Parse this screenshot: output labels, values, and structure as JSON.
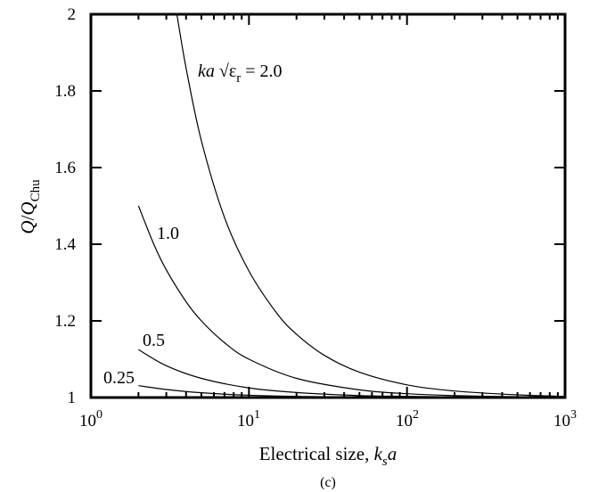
{
  "chart_data": {
    "type": "line",
    "x_scale": "log",
    "xlim": [
      1,
      1000
    ],
    "ylim": [
      1,
      2
    ],
    "grid": false,
    "xlabel": {
      "main": "Electrical size, ",
      "k": "k",
      "s": "s",
      "a": "a"
    },
    "ylabel": {
      "Q1": "Q",
      "slash": "/",
      "Q2": "Q",
      "sub": "Chu"
    },
    "x_tick_labels": [
      {
        "base": "10",
        "exp": "0"
      },
      {
        "base": "10",
        "exp": "1"
      },
      {
        "base": "10",
        "exp": "2"
      },
      {
        "base": "10",
        "exp": "3"
      }
    ],
    "y_tick_labels": [
      "1",
      "1.2",
      "1.4",
      "1.6",
      "1.8",
      "2"
    ],
    "y_ticks": [
      1,
      1.2,
      1.4,
      1.6,
      1.8,
      2
    ],
    "caption": "(c)",
    "series_label_prefix": {
      "ka": "ka",
      "sqrt": "√",
      "eps": "ε",
      "r": "r",
      "eq": " = 2.0"
    },
    "series": [
      {
        "name": "2.0",
        "x": [
          3.5,
          4,
          5,
          7,
          10,
          15,
          20,
          30,
          50,
          100,
          200,
          500,
          1000
        ],
        "y": [
          2.0,
          1.86,
          1.67,
          1.47,
          1.33,
          1.22,
          1.165,
          1.11,
          1.066,
          1.033,
          1.017,
          1.007,
          1.003
        ]
      },
      {
        "name": "1.0",
        "x": [
          2,
          2.5,
          3,
          4,
          5,
          7,
          10,
          20,
          50,
          100,
          200,
          500,
          1000
        ],
        "y": [
          1.5,
          1.4,
          1.333,
          1.25,
          1.2,
          1.143,
          1.1,
          1.05,
          1.02,
          1.01,
          1.005,
          1.002,
          1.001
        ]
      },
      {
        "name": "0.5",
        "x": [
          2,
          3,
          5,
          10,
          20,
          50,
          100,
          300,
          1000
        ],
        "y": [
          1.125,
          1.083,
          1.05,
          1.025,
          1.013,
          1.005,
          1.003,
          1.001,
          1.0
        ]
      },
      {
        "name": "0.25",
        "x": [
          2,
          3,
          5,
          10,
          30,
          100,
          1000
        ],
        "y": [
          1.031,
          1.021,
          1.0125,
          1.006,
          1.002,
          1.001,
          1.0
        ]
      }
    ],
    "series_labels": [
      "1.0",
      "0.5",
      "0.25"
    ]
  }
}
